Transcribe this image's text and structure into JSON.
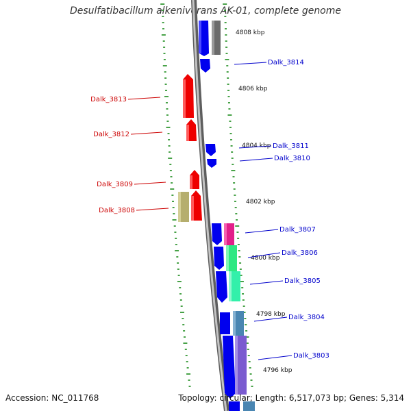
{
  "title": "Desulfatibacillum alkenivorans AK-01, complete genome",
  "footer": {
    "accession": "Accession: NC_011768",
    "summary": "Topology: circular; Length: 6,517,073 bp; Genes: 5,314"
  },
  "colors": {
    "minus_strand_gene": "#ff0000",
    "plus_strand_gene": "#0000ff",
    "backbone": "#888888",
    "tick": "#1a8a1a",
    "minus_label": "#cc0000",
    "plus_label": "#0000cc"
  },
  "scale_labels": [
    "4808 kbp",
    "4806 kbp",
    "4804 kbp",
    "4802 kbp",
    "4800 kbp",
    "4798 kbp",
    "4796 kbp"
  ],
  "gene_labels": {
    "minus_strand": [
      "Dalk_3813",
      "Dalk_3812",
      "Dalk_3809",
      "Dalk_3808"
    ],
    "plus_strand": [
      "Dalk_3814",
      "Dalk_3811",
      "Dalk_3810",
      "Dalk_3807",
      "Dalk_3806",
      "Dalk_3805",
      "Dalk_3804",
      "Dalk_3803"
    ]
  }
}
